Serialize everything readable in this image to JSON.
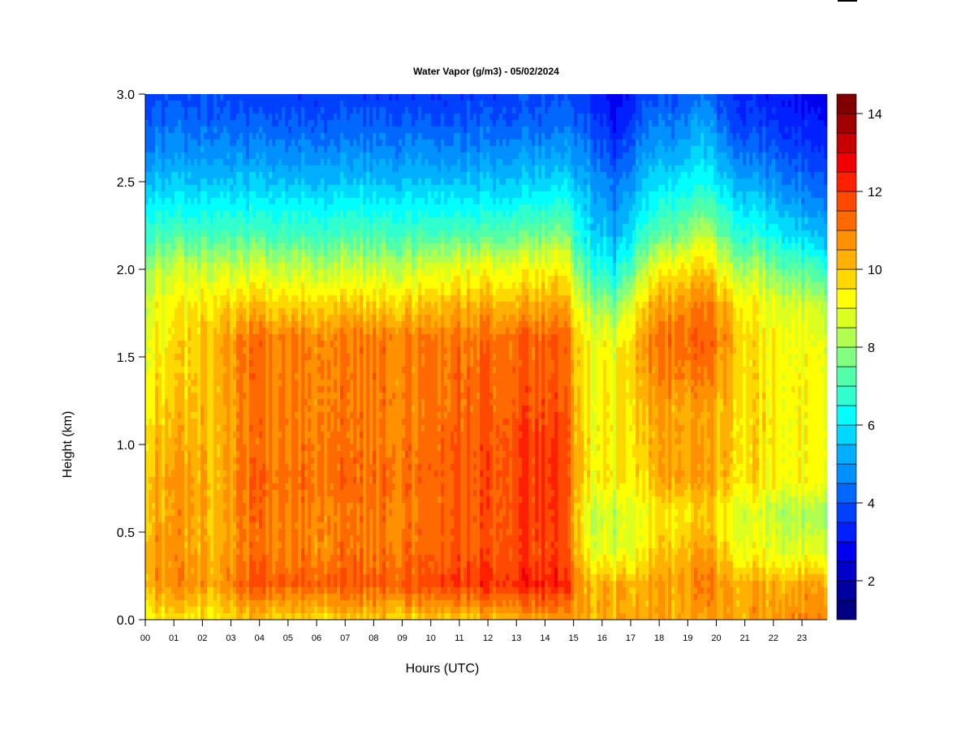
{
  "chart_data": {
    "type": "heatmap",
    "title": "Water Vapor (g/m3) - 05/02/2024",
    "xlabel": "Hours (UTC)",
    "ylabel": "Height (km)",
    "xlim": [
      0,
      23.88
    ],
    "ylim": [
      0,
      3.0
    ],
    "x_ticks": [
      "00",
      "01",
      "02",
      "03",
      "04",
      "05",
      "06",
      "07",
      "08",
      "09",
      "10",
      "11",
      "12",
      "13",
      "14",
      "15",
      "16",
      "17",
      "18",
      "19",
      "20",
      "21",
      "22",
      "23"
    ],
    "y_ticks": [
      "0.0",
      "0.5",
      "1.0",
      "1.5",
      "2.0",
      "2.5",
      "3.0"
    ],
    "x_hours": [
      0.5,
      1.5,
      2.5,
      3.5,
      4.5,
      5.5,
      6.5,
      7.5,
      8.5,
      9.5,
      10.5,
      11.5,
      12.5,
      13.5,
      14.5,
      15.5,
      16.5,
      17.5,
      18.5,
      19.5,
      20.5,
      21.5,
      22.5,
      23.5
    ],
    "heights_km": [
      0.0,
      0.2,
      0.4,
      0.6,
      0.8,
      1.0,
      1.2,
      1.4,
      1.6,
      1.8,
      2.0,
      2.2,
      2.4,
      2.6,
      2.8,
      3.0
    ],
    "values": [
      [
        9.5,
        10.5,
        10.5,
        10.3,
        10.3,
        10.0,
        9.8,
        9.5,
        9.2,
        9.0,
        8.3,
        7.0,
        6.0,
        5.0,
        4.3,
        3.8
      ],
      [
        9.5,
        10.8,
        10.5,
        10.5,
        10.5,
        10.3,
        10.0,
        9.8,
        9.8,
        9.3,
        8.5,
        7.0,
        6.0,
        5.0,
        4.3,
        3.8
      ],
      [
        9.3,
        10.3,
        10.0,
        10.0,
        10.0,
        10.0,
        10.0,
        10.0,
        10.2,
        9.5,
        8.5,
        7.0,
        6.0,
        5.0,
        4.3,
        3.8
      ],
      [
        9.8,
        11.5,
        11.0,
        11.0,
        11.2,
        11.0,
        11.0,
        11.0,
        11.0,
        9.8,
        8.5,
        7.0,
        6.0,
        5.0,
        4.2,
        3.6
      ],
      [
        9.8,
        11.5,
        11.0,
        11.0,
        11.2,
        11.0,
        11.0,
        11.0,
        11.0,
        9.8,
        8.5,
        7.0,
        6.0,
        5.0,
        4.2,
        3.6
      ],
      [
        9.8,
        11.5,
        11.0,
        11.0,
        11.2,
        11.0,
        11.0,
        11.0,
        11.0,
        9.8,
        8.5,
        7.0,
        6.0,
        5.0,
        4.2,
        3.6
      ],
      [
        9.8,
        11.5,
        11.0,
        11.0,
        11.3,
        11.2,
        11.0,
        11.0,
        11.0,
        9.8,
        8.5,
        7.0,
        6.0,
        5.0,
        4.2,
        3.6
      ],
      [
        9.8,
        11.5,
        11.0,
        11.0,
        11.2,
        11.0,
        11.0,
        11.0,
        11.0,
        9.8,
        8.5,
        7.0,
        6.0,
        5.0,
        4.2,
        3.6
      ],
      [
        9.8,
        11.5,
        11.0,
        11.0,
        11.2,
        11.0,
        11.0,
        11.0,
        11.0,
        9.8,
        8.5,
        7.0,
        6.0,
        5.0,
        4.2,
        3.6
      ],
      [
        9.8,
        11.6,
        11.2,
        11.0,
        11.2,
        11.0,
        11.0,
        11.0,
        11.0,
        9.8,
        8.5,
        7.0,
        6.0,
        5.0,
        4.2,
        3.6
      ],
      [
        10.0,
        12.0,
        11.5,
        11.5,
        11.5,
        11.5,
        11.3,
        11.3,
        11.2,
        10.2,
        9.0,
        7.2,
        6.0,
        5.0,
        4.2,
        3.6
      ],
      [
        10.0,
        12.0,
        11.5,
        11.5,
        11.5,
        11.5,
        11.3,
        11.3,
        11.2,
        10.2,
        9.0,
        7.2,
        6.0,
        5.0,
        4.2,
        3.6
      ],
      [
        10.2,
        12.0,
        11.6,
        11.6,
        11.6,
        11.6,
        11.4,
        11.3,
        11.2,
        10.2,
        9.0,
        7.3,
        6.0,
        5.0,
        4.2,
        3.7
      ],
      [
        10.5,
        12.3,
        11.8,
        12.0,
        12.0,
        12.0,
        11.7,
        11.5,
        11.5,
        10.3,
        9.2,
        7.5,
        6.2,
        5.2,
        4.3,
        3.8
      ],
      [
        10.5,
        12.3,
        11.8,
        12.0,
        12.0,
        12.0,
        11.7,
        11.5,
        11.5,
        10.5,
        9.4,
        7.8,
        6.4,
        5.3,
        4.4,
        3.9
      ],
      [
        10.3,
        10.3,
        9.2,
        8.8,
        9.5,
        9.5,
        9.3,
        9.3,
        9.2,
        8.3,
        7.0,
        6.0,
        5.5,
        4.8,
        4.2,
        3.5
      ],
      [
        10.3,
        10.2,
        8.5,
        8.3,
        9.3,
        9.2,
        9.2,
        9.2,
        8.8,
        7.5,
        6.0,
        5.0,
        4.5,
        3.8,
        3.0,
        2.5
      ],
      [
        10.3,
        10.3,
        9.5,
        9.2,
        9.8,
        10.0,
        10.2,
        10.5,
        10.8,
        10.0,
        8.5,
        7.0,
        6.0,
        5.2,
        4.5,
        3.8
      ],
      [
        10.3,
        10.5,
        10.0,
        9.5,
        10.5,
        10.5,
        10.5,
        11.0,
        11.3,
        10.5,
        9.5,
        7.5,
        6.5,
        5.5,
        4.5,
        3.8
      ],
      [
        10.5,
        11.0,
        10.5,
        9.8,
        10.5,
        10.5,
        10.5,
        11.0,
        11.5,
        11.0,
        10.0,
        8.5,
        7.0,
        6.0,
        5.2,
        4.5
      ],
      [
        10.5,
        10.5,
        9.5,
        9.2,
        10.0,
        10.0,
        10.0,
        10.2,
        10.5,
        10.0,
        8.5,
        7.0,
        6.0,
        5.0,
        4.0,
        3.5
      ],
      [
        10.5,
        10.3,
        9.0,
        8.5,
        9.5,
        9.5,
        9.5,
        9.5,
        9.3,
        9.0,
        8.0,
        6.5,
        5.5,
        4.5,
        3.8,
        3.2
      ],
      [
        10.8,
        10.3,
        8.8,
        8.3,
        9.3,
        9.3,
        9.3,
        9.3,
        9.2,
        8.8,
        7.5,
        6.0,
        5.0,
        4.2,
        3.5,
        3.0
      ],
      [
        11.0,
        10.5,
        8.8,
        8.2,
        9.3,
        9.3,
        9.3,
        9.2,
        9.0,
        8.5,
        7.0,
        5.5,
        4.5,
        3.8,
        3.2,
        2.8
      ]
    ],
    "colorbar": {
      "range": [
        1.0,
        14.5
      ],
      "step": 0.5,
      "ticks": [
        "2",
        "4",
        "6",
        "8",
        "10",
        "12",
        "14"
      ],
      "tick_values": [
        2,
        4,
        6,
        8,
        10,
        12,
        14
      ],
      "colors": [
        "#000080",
        "#0000A0",
        "#0000C8",
        "#0000F0",
        "#0020FF",
        "#0040FF",
        "#0068FF",
        "#0090FF",
        "#00B0FF",
        "#00D8FF",
        "#00FFFF",
        "#30FFD0",
        "#50FFA8",
        "#80FF80",
        "#B0FF50",
        "#DDFF20",
        "#FFFF00",
        "#FFD800",
        "#FFB000",
        "#FF9000",
        "#FF6A00",
        "#FF4800",
        "#FF2000",
        "#F00000",
        "#C80000",
        "#A00000",
        "#800000"
      ]
    }
  }
}
